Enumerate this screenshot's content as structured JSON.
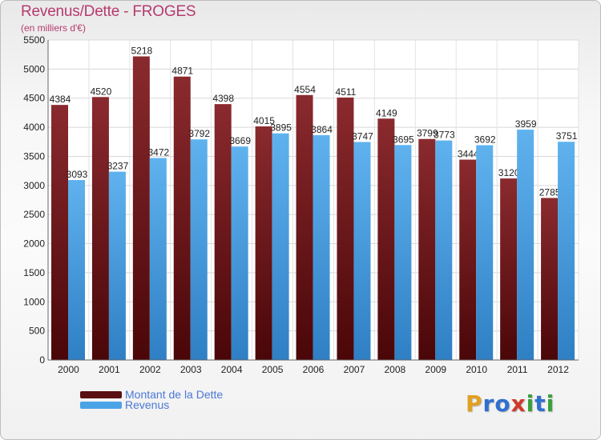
{
  "chart_data": {
    "type": "bar",
    "title": "Revenus/Dette - FROGES",
    "subtitle": "(en milliers d'€)",
    "categories": [
      "2000",
      "2001",
      "2002",
      "2003",
      "2004",
      "2005",
      "2006",
      "2007",
      "2008",
      "2009",
      "2010",
      "2011",
      "2012"
    ],
    "series": [
      {
        "name": "Montant de la Dette",
        "color": "#7a1a1e",
        "values": [
          4384,
          4520,
          5218,
          4871,
          4398,
          4015,
          4554,
          4511,
          4149,
          3799,
          3444,
          3120,
          2785
        ],
        "labels": [
          "4384",
          "4520",
          "5218",
          "4871",
          "4398",
          "4015",
          "4554",
          "4511",
          "4149",
          "3799",
          "3444",
          "3120",
          "2785"
        ]
      },
      {
        "name": "Revenus",
        "color": "#4aa3e6",
        "values": [
          3093,
          3237,
          3472,
          3792,
          3669,
          3895,
          3864,
          3747,
          3695,
          3773,
          3692,
          3959,
          3751
        ],
        "labels": [
          "3093",
          "3237",
          "3472",
          "3792",
          "3669",
          "3895",
          "3864",
          "3747",
          "3695",
          "3773",
          "3692",
          "3959",
          "3751"
        ]
      }
    ],
    "ylim": [
      0,
      5500
    ],
    "yticks": [
      "0",
      "500",
      "1000",
      "1500",
      "2000",
      "2500",
      "3000",
      "3500",
      "4000",
      "4500",
      "5000",
      "5500"
    ],
    "grid": true,
    "legend": "bottom-left"
  },
  "logo": {
    "text": [
      "P",
      "r",
      "o",
      "x",
      "i",
      "t",
      "i"
    ],
    "colors": [
      "#e0a020",
      "#2f6fd0",
      "#2f6fd0",
      "#d03a2a",
      "#3aa03a",
      "#2f6fd0",
      "#3aa03a"
    ]
  }
}
